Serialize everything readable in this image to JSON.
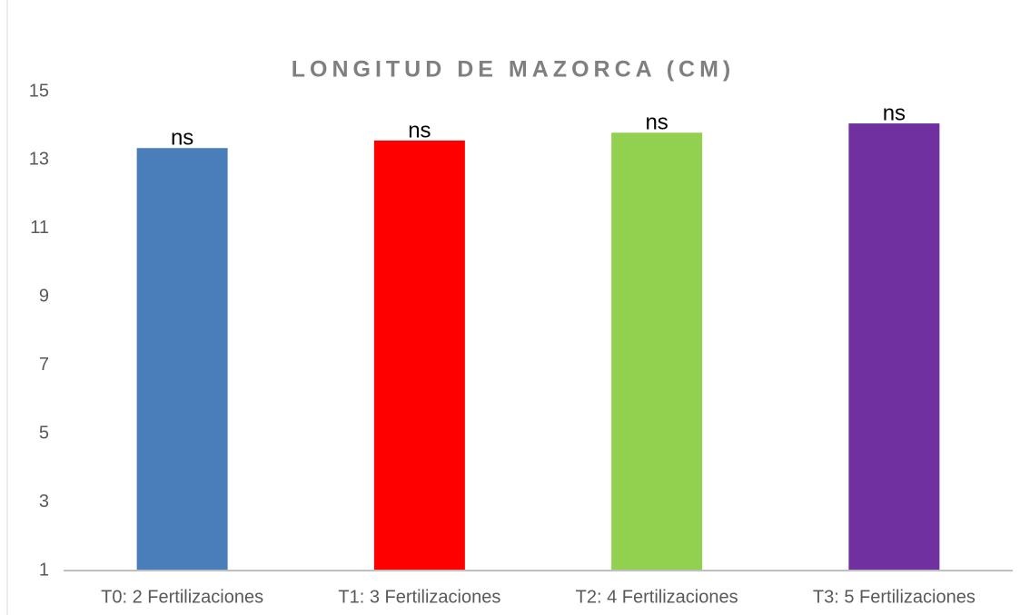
{
  "chart_data": {
    "type": "bar",
    "title": "LONGITUD DE MAZORCA (CM)",
    "categories": [
      "T0: 2 Fertilizaciones",
      "T1: 3 Fertilizaciones",
      "T2: 4 Fertilizaciones",
      "T3: 5 Fertilizaciones"
    ],
    "values": [
      13.35,
      13.57,
      13.8,
      14.07
    ],
    "colors": [
      "#4a7ebb",
      "#ff0000",
      "#92d050",
      "#7030a0"
    ],
    "annotations": [
      "ns",
      "ns",
      "ns",
      "ns"
    ],
    "ylim": [
      1,
      15
    ],
    "yticks": [
      1,
      3,
      5,
      7,
      9,
      11,
      13,
      15
    ],
    "grid": false
  }
}
